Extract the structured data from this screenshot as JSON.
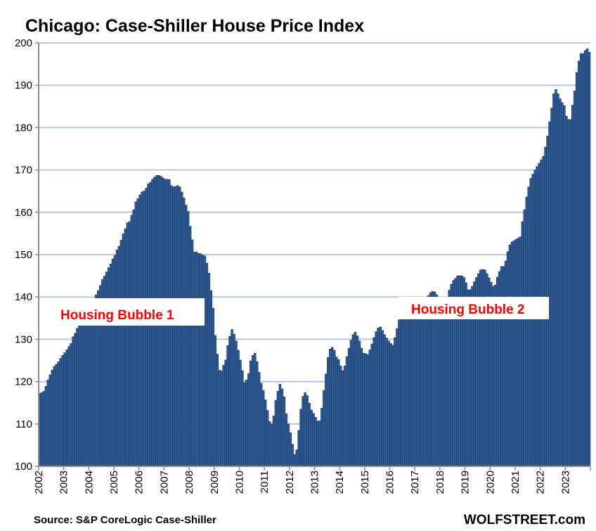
{
  "chart_data": {
    "type": "bar",
    "title": "Chicago: Case-Shiller House Price Index",
    "xlabel": "",
    "ylabel": "",
    "ylim": [
      100,
      200
    ],
    "yticks": [
      100,
      110,
      120,
      130,
      140,
      150,
      160,
      170,
      180,
      190,
      200
    ],
    "xtick_labels": [
      "2002",
      "2003",
      "2004",
      "2005",
      "2006",
      "2007",
      "2008",
      "2009",
      "2010",
      "2011",
      "2012",
      "2013",
      "2014",
      "2015",
      "2016",
      "2017",
      "2018",
      "2019",
      "2020",
      "2021",
      "2022",
      "2023"
    ],
    "frequency": "monthly",
    "start": "2002-01",
    "grid": true,
    "values": [
      117.2,
      117.4,
      117.7,
      118.9,
      120.4,
      121.6,
      122.7,
      123.6,
      124.1,
      124.7,
      125.5,
      126.2,
      126.8,
      127.5,
      128.3,
      129.0,
      130.6,
      131.4,
      132.6,
      133.2,
      133.7,
      134.3,
      135.0,
      136.0,
      137.2,
      138.5,
      139.5,
      140.5,
      141.5,
      142.7,
      144.1,
      144.9,
      145.9,
      146.9,
      147.8,
      149.0,
      149.8,
      151.1,
      152.0,
      153.4,
      154.9,
      156.1,
      157.5,
      157.8,
      159.3,
      160.6,
      162.5,
      163.2,
      164.1,
      164.8,
      165.0,
      165.7,
      166.7,
      167.1,
      167.8,
      168.3,
      168.7,
      168.7,
      168.5,
      168.1,
      167.8,
      167.8,
      167.7,
      166.3,
      166.0,
      166.1,
      166.3,
      166.0,
      164.8,
      163.4,
      161.7,
      160.2,
      156.7,
      153.5,
      150.6,
      150.6,
      150.3,
      150.2,
      149.9,
      149.7,
      148.0,
      145.6,
      141.5,
      137.3,
      130.9,
      126.5,
      122.7,
      122.5,
      123.9,
      125.1,
      128.5,
      130.7,
      132.3,
      131.2,
      129.6,
      127.4,
      125.1,
      122.6,
      119.8,
      120.4,
      121.9,
      124.9,
      126.2,
      126.7,
      124.7,
      122.2,
      119.6,
      117.9,
      115.7,
      113.2,
      110.6,
      110.0,
      111.9,
      115.6,
      117.7,
      119.4,
      118.3,
      116.4,
      112.4,
      110.0,
      107.9,
      105.2,
      102.8,
      103.9,
      108.5,
      113.5,
      116.5,
      117.4,
      116.7,
      114.9,
      113.3,
      112.5,
      111.6,
      110.7,
      110.7,
      113.7,
      117.9,
      121.8,
      125.7,
      127.7,
      128.1,
      127.4,
      125.8,
      125.2,
      123.7,
      122.6,
      123.7,
      125.9,
      127.9,
      129.8,
      131.1,
      131.7,
      130.8,
      129.6,
      127.9,
      126.7,
      126.6,
      126.4,
      127.5,
      128.9,
      130.4,
      131.8,
      132.7,
      132.9,
      132.1,
      131.1,
      130.3,
      129.6,
      129.0,
      128.6,
      130.4,
      132.5,
      134.6,
      135.5,
      136.5,
      137.0,
      137.2,
      137.0,
      136.8,
      136.5,
      136.3,
      136.0,
      136.2,
      137.0,
      138.3,
      139.5,
      140.3,
      141.0,
      141.3,
      141.2,
      140.5,
      139.8,
      139.2,
      138.6,
      138.5,
      139.8,
      141.6,
      143.0,
      143.9,
      144.4,
      145.0,
      145.0,
      145.0,
      144.6,
      143.3,
      141.7,
      141.7,
      142.5,
      143.6,
      144.6,
      145.5,
      146.4,
      146.5,
      146.4,
      145.5,
      144.5,
      143.5,
      142.5,
      142.8,
      144.7,
      146.0,
      147.2,
      147.2,
      148.5,
      150.7,
      152.3,
      153.0,
      153.3,
      153.6,
      153.9,
      154.2,
      157.8,
      160.6,
      163.6,
      166.0,
      168.0,
      169.0,
      170.0,
      170.8,
      171.6,
      172.4,
      173.2,
      175.4,
      178.0,
      181.4,
      184.6,
      188.0,
      189.0,
      188.0,
      186.8,
      185.9,
      185.2,
      182.7,
      181.9,
      181.9,
      185.3,
      188.7,
      193.0,
      195.7,
      197.5,
      197.5,
      198.2,
      198.6,
      197.8
    ],
    "annotations": [
      "Housing Bubble 1",
      "Housing Bubble 2"
    ],
    "source": "Source: S&P CoreLogic Case-Shiller",
    "brand": "WOLFSTREET.com",
    "colors": {
      "bar": "#2E5A94",
      "bar_edge": "#1C3A66",
      "grid": "#B4C7E7",
      "annotation": "#FF0000"
    }
  }
}
